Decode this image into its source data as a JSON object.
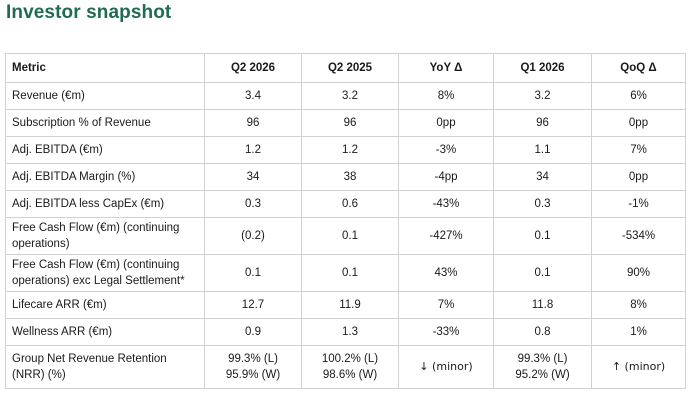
{
  "page": {
    "title": "Investor snapshot"
  },
  "table": {
    "headers": [
      "Metric",
      "Q2 2026",
      "Q2 2025",
      "YoY Δ",
      "Q1 2026",
      "QoQ Δ"
    ],
    "rows": [
      {
        "metric": "Revenue (€m)",
        "q2_2026": "3.4",
        "q2_2025": "3.2",
        "yoy": "8%",
        "q1_2026": "3.2",
        "qoq": "6%"
      },
      {
        "metric": "Subscription % of Revenue",
        "q2_2026": "96",
        "q2_2025": "96",
        "yoy": "0pp",
        "q1_2026": "96",
        "qoq": "0pp"
      },
      {
        "metric": "Adj. EBITDA (€m)",
        "q2_2026": "1.2",
        "q2_2025": "1.2",
        "yoy": "-3%",
        "q1_2026": "1.1",
        "qoq": "7%"
      },
      {
        "metric": "Adj. EBITDA Margin (%)",
        "q2_2026": "34",
        "q2_2025": "38",
        "yoy": "-4pp",
        "q1_2026": "34",
        "qoq": "0pp"
      },
      {
        "metric": "Adj. EBITDA less CapEx (€m)",
        "q2_2026": "0.3",
        "q2_2025": "0.6",
        "yoy": "-43%",
        "q1_2026": "0.3",
        "qoq": "-1%"
      },
      {
        "metric": "Free Cash Flow (€m) (continuing operations)",
        "q2_2026": "(0.2)",
        "q2_2025": "0.1",
        "yoy": "-427%",
        "q1_2026": "0.1",
        "qoq": "-534%"
      },
      {
        "metric": "Free Cash Flow (€m) (continuing operations) exc Legal Settlement*",
        "q2_2026": "0.1",
        "q2_2025": "0.1",
        "yoy": "43%",
        "q1_2026": "0.1",
        "qoq": "90%"
      },
      {
        "metric": "Lifecare ARR (€m)",
        "q2_2026": "12.7",
        "q2_2025": "11.9",
        "yoy": "7%",
        "q1_2026": "11.8",
        "qoq": "8%"
      },
      {
        "metric": "Wellness ARR (€m)",
        "q2_2026": "0.9",
        "q2_2025": "1.3",
        "yoy": "-33%",
        "q1_2026": "0.8",
        "qoq": "1%"
      }
    ],
    "nrr_row": {
      "metric": "Group Net Revenue Retention (NRR) (%)",
      "q2_2026": [
        "99.3% (L)",
        "95.9% (W)"
      ],
      "q2_2025": [
        "100.2% (L)",
        "98.6% (W)"
      ],
      "yoy": "↓ (minor)",
      "q1_2026": [
        "99.3% (L)",
        "95.2% (W)"
      ],
      "qoq": "↑ (minor)"
    }
  }
}
